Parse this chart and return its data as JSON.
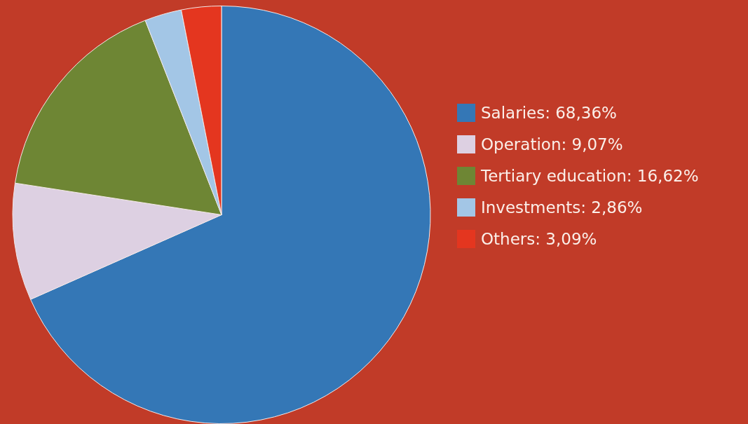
{
  "chart_data": {
    "type": "pie",
    "categories": [
      "Salaries: 68,36%",
      "Operation: 9,07%",
      "Tertiary education: 16,62%",
      "Investments: 2,86%",
      "Others: 3,09%"
    ],
    "values": [
      68.36,
      9.07,
      16.62,
      2.86,
      3.09
    ],
    "colors": [
      "#3477b6",
      "#ddd0e2",
      "#6e8634",
      "#a3c6e6",
      "#e4361f"
    ],
    "legend": "right"
  }
}
